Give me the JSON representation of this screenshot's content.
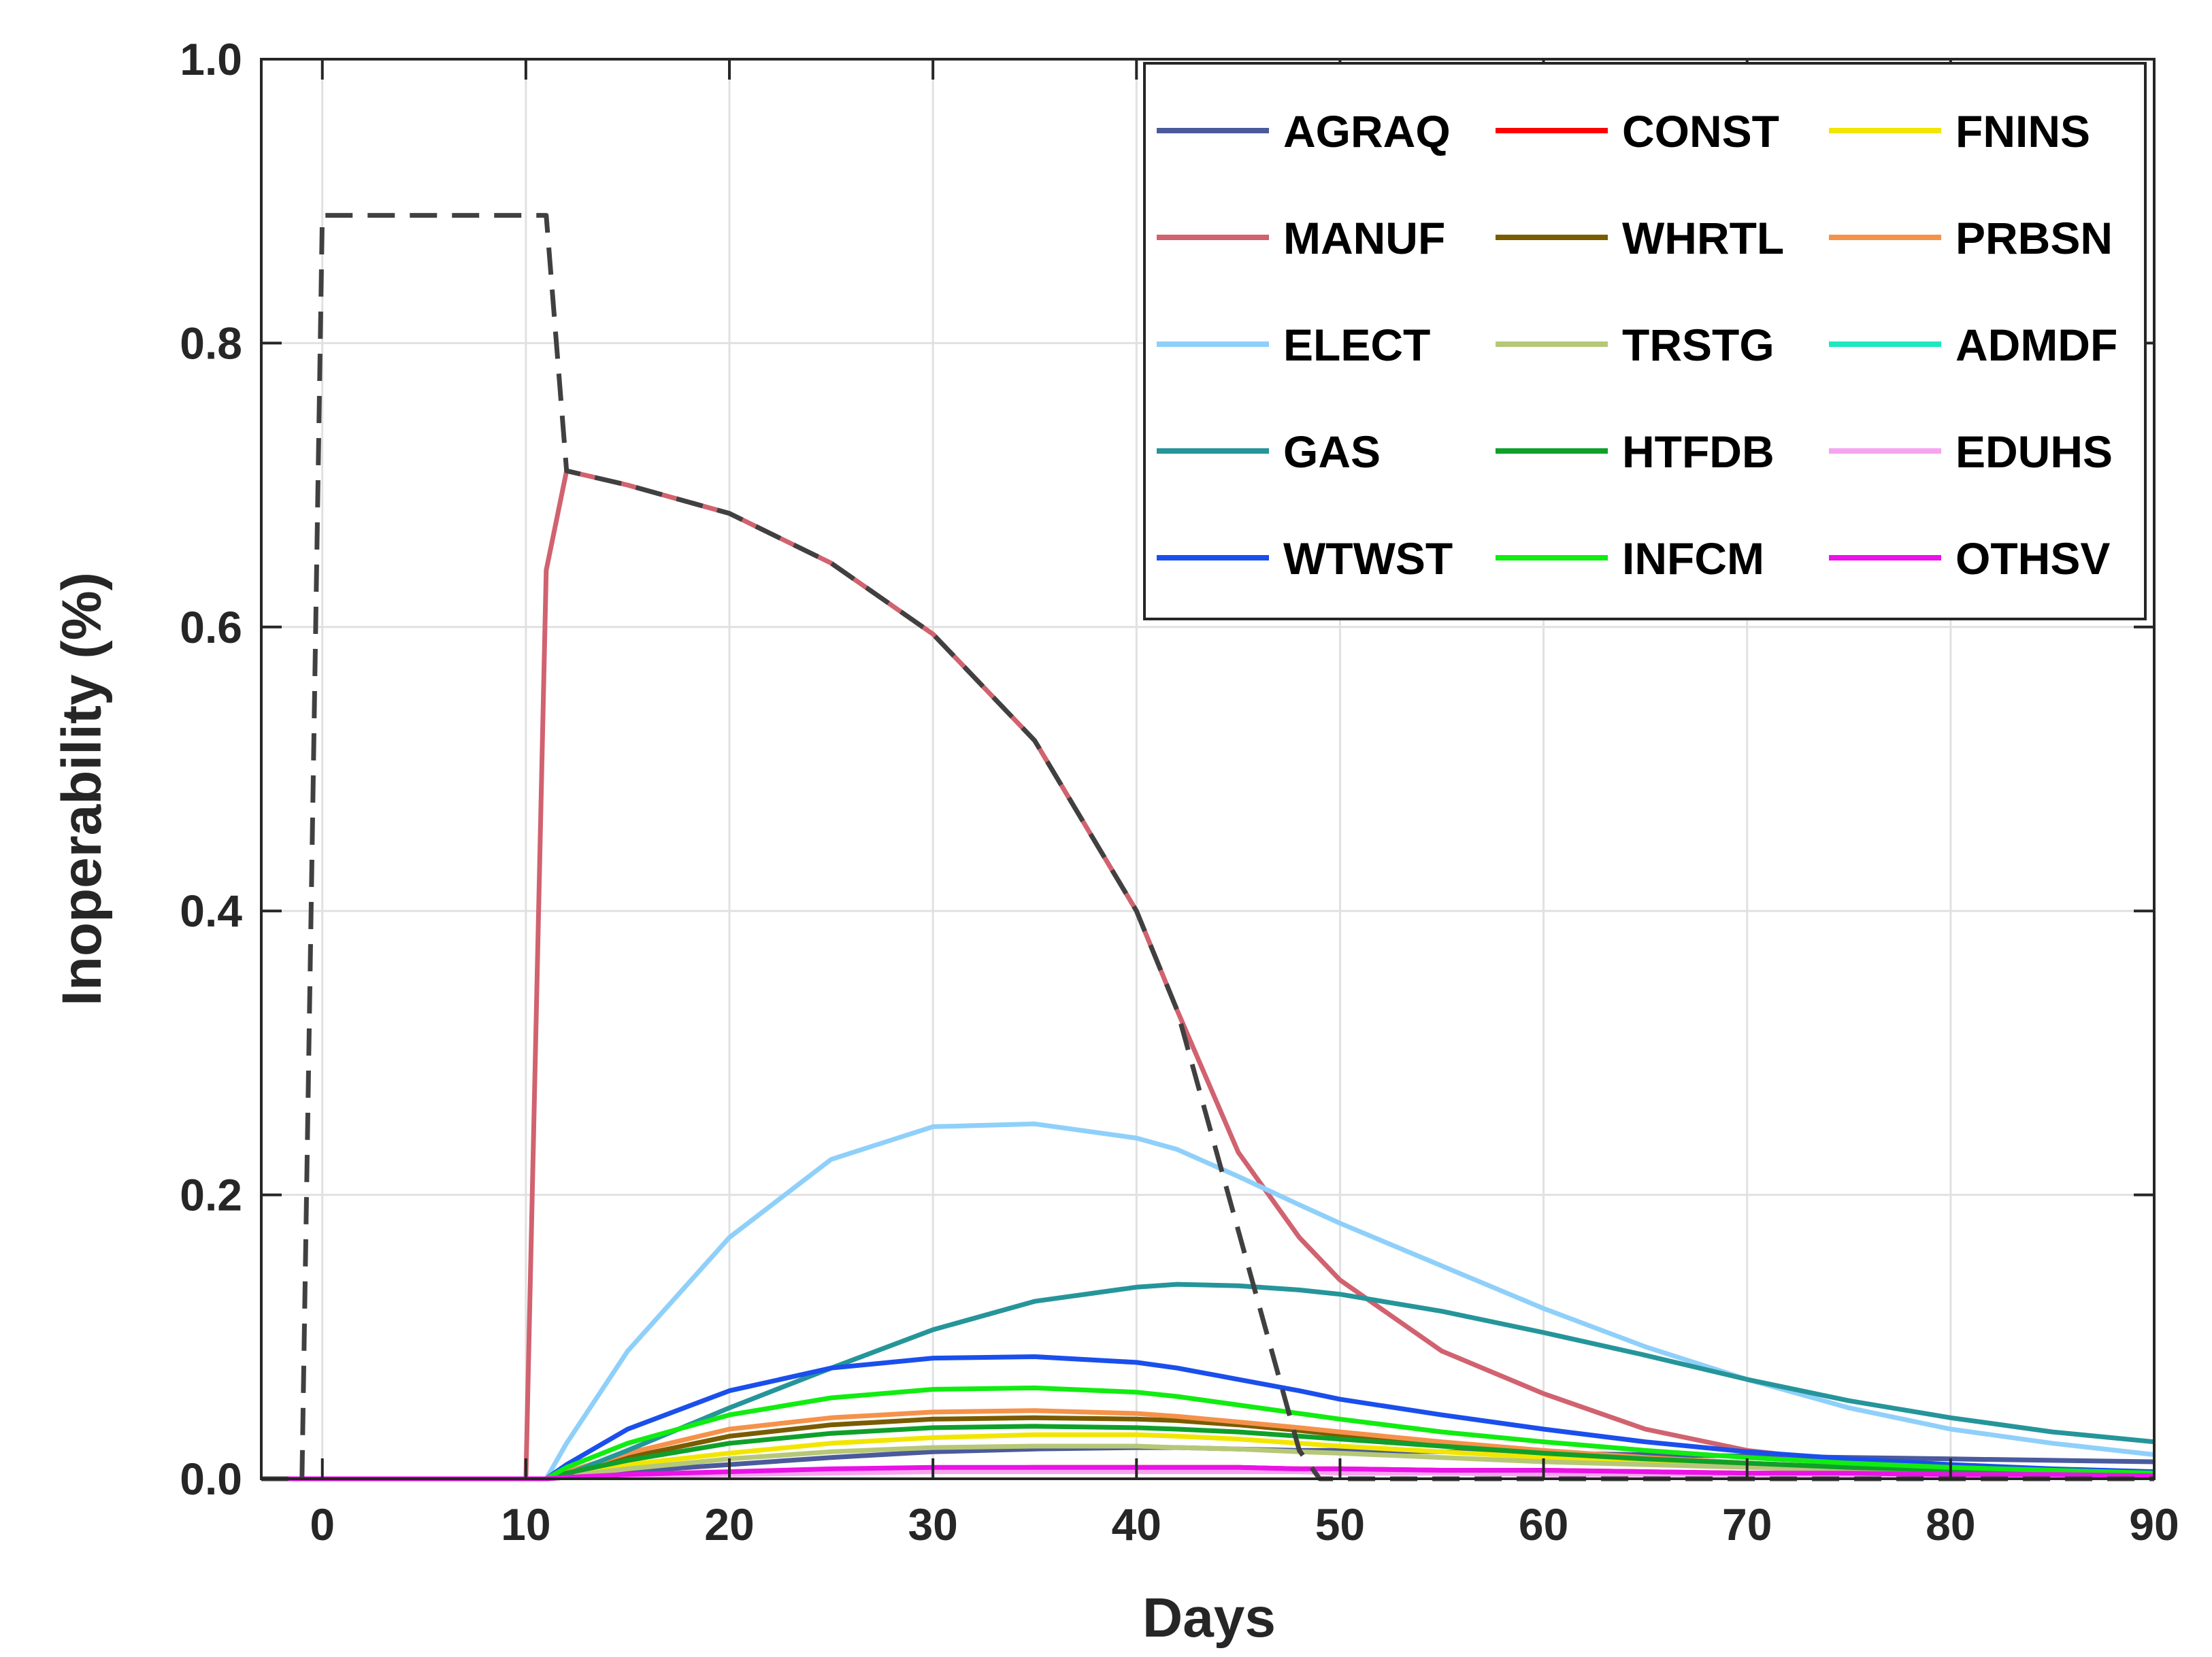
{
  "chart_data": {
    "type": "line",
    "xlabel": "Days",
    "ylabel": "Inoperability (%)",
    "xlim": [
      -3,
      90
    ],
    "ylim": [
      0,
      1.0
    ],
    "xticks": [
      0,
      10,
      20,
      30,
      40,
      50,
      60,
      70,
      80,
      90
    ],
    "yticks": [
      0.0,
      0.2,
      0.4,
      0.6,
      0.8,
      1.0
    ],
    "xtick_labels": [
      "0",
      "10",
      "20",
      "30",
      "40",
      "50",
      "60",
      "70",
      "80",
      "90"
    ],
    "ytick_labels": [
      "0.0",
      "0.2",
      "0.4",
      "0.6",
      "0.8",
      "1.0"
    ],
    "grid": true,
    "legend_position": "top-right",
    "legend_columns": 3,
    "x": [
      -3,
      -2,
      -1,
      0,
      5,
      10,
      11,
      12,
      15,
      20,
      25,
      30,
      35,
      40,
      42,
      45,
      48,
      50,
      55,
      60,
      65,
      70,
      75,
      80,
      85,
      90
    ],
    "series": [
      {
        "name": "AGRAQ",
        "color": "#4a5a9c",
        "values": [
          0,
          0,
          0,
          0,
          0,
          0,
          0,
          0.002,
          0.005,
          0.01,
          0.015,
          0.019,
          0.021,
          0.022,
          0.022,
          0.021,
          0.02,
          0.02,
          0.019,
          0.018,
          0.017,
          0.016,
          0.015,
          0.014,
          0.013,
          0.012
        ]
      },
      {
        "name": "CONST",
        "color": "#ff0000",
        "values": [
          0,
          0,
          0,
          0,
          0,
          0,
          0,
          0.001,
          0.002,
          0.004,
          0.006,
          0.007,
          0.008,
          0.008,
          0.008,
          0.008,
          0.007,
          0.007,
          0.006,
          0.006,
          0.005,
          0.004,
          0.004,
          0.003,
          0.003,
          0.002
        ]
      },
      {
        "name": "FNINS",
        "color": "#f2e600",
        "values": [
          0,
          0,
          0,
          0,
          0,
          0,
          0,
          0.003,
          0.01,
          0.018,
          0.025,
          0.029,
          0.031,
          0.031,
          0.03,
          0.028,
          0.025,
          0.023,
          0.019,
          0.015,
          0.012,
          0.009,
          0.007,
          0.005,
          0.004,
          0.003
        ]
      },
      {
        "name": "MANUF",
        "color": "#d1626f",
        "values": [
          0,
          0,
          0,
          0,
          0,
          0,
          0.64,
          0.71,
          0.7,
          0.68,
          0.645,
          0.595,
          0.52,
          0.4,
          0.33,
          0.23,
          0.17,
          0.14,
          0.09,
          0.06,
          0.035,
          0.02,
          0.012,
          0.008,
          0.005,
          0.004
        ]
      },
      {
        "name": "WHRTL",
        "color": "#7a5c00",
        "values": [
          0,
          0,
          0,
          0,
          0,
          0,
          0,
          0.005,
          0.015,
          0.03,
          0.038,
          0.042,
          0.043,
          0.042,
          0.041,
          0.038,
          0.034,
          0.031,
          0.025,
          0.019,
          0.015,
          0.011,
          0.008,
          0.006,
          0.004,
          0.003
        ]
      },
      {
        "name": "PRBSN",
        "color": "#f5924a",
        "values": [
          0,
          0,
          0,
          0,
          0,
          0,
          0,
          0.005,
          0.018,
          0.035,
          0.043,
          0.047,
          0.048,
          0.046,
          0.044,
          0.04,
          0.036,
          0.033,
          0.026,
          0.02,
          0.015,
          0.011,
          0.008,
          0.006,
          0.004,
          0.003
        ]
      },
      {
        "name": "ELECT",
        "color": "#8fd0fa",
        "values": [
          0,
          0,
          0,
          0,
          0,
          0,
          0,
          0.025,
          0.09,
          0.17,
          0.225,
          0.248,
          0.25,
          0.24,
          0.232,
          0.213,
          0.193,
          0.18,
          0.15,
          0.12,
          0.093,
          0.07,
          0.05,
          0.035,
          0.025,
          0.017
        ]
      },
      {
        "name": "TRSTG",
        "color": "#b6c877",
        "values": [
          0,
          0,
          0,
          0,
          0,
          0,
          0,
          0.002,
          0.007,
          0.014,
          0.019,
          0.022,
          0.023,
          0.023,
          0.022,
          0.021,
          0.019,
          0.018,
          0.015,
          0.012,
          0.01,
          0.008,
          0.006,
          0.005,
          0.004,
          0.003
        ]
      },
      {
        "name": "ADMDF",
        "color": "#1de8c0",
        "values": [
          0,
          0,
          0,
          0,
          0,
          0,
          0,
          0.001,
          0.002,
          0.004,
          0.005,
          0.006,
          0.006,
          0.006,
          0.006,
          0.006,
          0.005,
          0.005,
          0.004,
          0.004,
          0.003,
          0.003,
          0.002,
          0.002,
          0.002,
          0.001
        ]
      },
      {
        "name": "GAS",
        "color": "#25959a",
        "values": [
          0,
          0,
          0,
          0,
          0,
          0,
          0,
          0.003,
          0.02,
          0.05,
          0.078,
          0.105,
          0.125,
          0.135,
          0.137,
          0.136,
          0.133,
          0.13,
          0.118,
          0.103,
          0.087,
          0.07,
          0.055,
          0.043,
          0.033,
          0.026
        ]
      },
      {
        "name": "HTFDB",
        "color": "#0fa02a",
        "values": [
          0,
          0,
          0,
          0,
          0,
          0,
          0,
          0.004,
          0.013,
          0.025,
          0.032,
          0.036,
          0.037,
          0.036,
          0.035,
          0.033,
          0.03,
          0.028,
          0.023,
          0.018,
          0.014,
          0.011,
          0.008,
          0.006,
          0.004,
          0.003
        ]
      },
      {
        "name": "EDUHS",
        "color": "#f7a4f0",
        "values": [
          0,
          0,
          0,
          0,
          0,
          0,
          0,
          0.001,
          0.002,
          0.003,
          0.004,
          0.005,
          0.005,
          0.005,
          0.005,
          0.005,
          0.005,
          0.004,
          0.004,
          0.003,
          0.003,
          0.003,
          0.002,
          0.002,
          0.002,
          0.001
        ]
      },
      {
        "name": "WTWST",
        "color": "#1a4fec",
        "values": [
          0,
          0,
          0,
          0,
          0,
          0,
          0,
          0.01,
          0.035,
          0.062,
          0.078,
          0.085,
          0.086,
          0.082,
          0.078,
          0.07,
          0.062,
          0.056,
          0.045,
          0.035,
          0.026,
          0.019,
          0.014,
          0.01,
          0.007,
          0.005
        ]
      },
      {
        "name": "INFCM",
        "color": "#11ec11",
        "values": [
          0,
          0,
          0,
          0,
          0,
          0,
          0,
          0.008,
          0.025,
          0.045,
          0.057,
          0.063,
          0.064,
          0.061,
          0.058,
          0.052,
          0.046,
          0.042,
          0.033,
          0.026,
          0.02,
          0.015,
          0.011,
          0.008,
          0.006,
          0.004
        ]
      },
      {
        "name": "OTHSV",
        "color": "#ea12e8",
        "values": [
          0,
          0,
          0,
          0,
          0,
          0,
          0,
          0.001,
          0.003,
          0.005,
          0.007,
          0.008,
          0.008,
          0.008,
          0.008,
          0.008,
          0.007,
          0.007,
          0.006,
          0.006,
          0.005,
          0.004,
          0.004,
          0.003,
          0.003,
          0.002
        ]
      }
    ],
    "reference": {
      "color": "#404040",
      "style": "dashed",
      "points": [
        [
          -3,
          0
        ],
        [
          -1,
          0
        ],
        [
          0,
          0.89
        ],
        [
          11,
          0.89
        ],
        [
          12,
          0.71
        ],
        [
          15,
          0.7
        ],
        [
          20,
          0.68
        ],
        [
          25,
          0.645
        ],
        [
          30,
          0.595
        ],
        [
          35,
          0.52
        ],
        [
          40,
          0.4
        ],
        [
          42,
          0.33
        ],
        [
          48,
          0.02
        ],
        [
          49,
          0
        ],
        [
          90,
          0
        ]
      ]
    }
  }
}
